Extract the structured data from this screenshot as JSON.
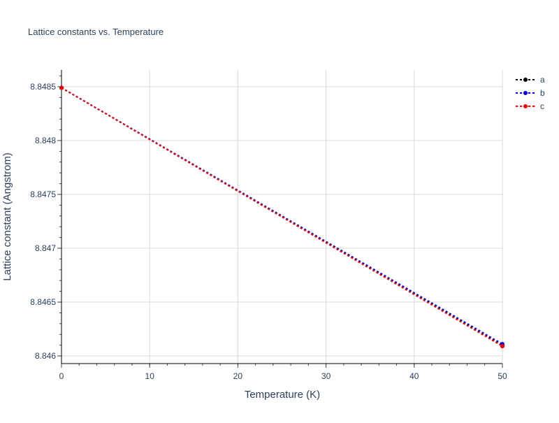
{
  "chart_data": {
    "type": "line",
    "title": "Lattice constants vs. Temperature",
    "xlabel": "Temperature (K)",
    "ylabel": "Lattice constant (Angstrom)",
    "xlim": [
      0,
      50
    ],
    "ylim": [
      8.845929,
      8.848656
    ],
    "xticks": [
      0,
      10,
      20,
      30,
      40,
      50
    ],
    "xtick_labels": [
      "0",
      "10",
      "20",
      "30",
      "40",
      "50"
    ],
    "yticks": [
      8.846,
      8.8465,
      8.847,
      8.8475,
      8.848,
      8.8485
    ],
    "ytick_labels": [
      "8.846",
      "8.8465",
      "8.847",
      "8.8475",
      "8.848",
      "8.8485"
    ],
    "grid": true,
    "legend_position": "top-right",
    "x": [
      0,
      10,
      20,
      30,
      40,
      50
    ],
    "series": [
      {
        "name": "a",
        "color": "#000000",
        "values": [
          8.84849,
          8.848011,
          8.847532,
          8.847053,
          8.846574,
          8.846095
        ]
      },
      {
        "name": "b",
        "color": "#0000ff",
        "values": [
          8.84849,
          8.848014,
          8.847538,
          8.847062,
          8.846586,
          8.84611
        ]
      },
      {
        "name": "c",
        "color": "#ff0000",
        "values": [
          8.84849,
          8.84801,
          8.84753,
          8.84705,
          8.84657,
          8.84609
        ]
      }
    ]
  }
}
